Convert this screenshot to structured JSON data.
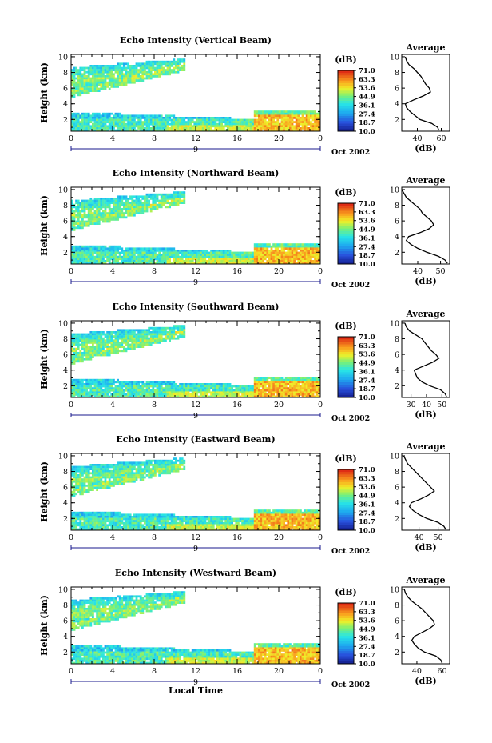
{
  "chart_data": [
    {
      "type": "heatmap",
      "title": "Echo Intensity (Vertical Beam)",
      "ylabel": "Height (km)",
      "xlabel": "",
      "xticks": [
        "0",
        "4",
        "8",
        "12",
        "16",
        "20",
        "0"
      ],
      "yticks": [
        "2",
        "4",
        "6",
        "8",
        "10"
      ],
      "ylim": [
        0.5,
        10.3
      ],
      "day_label": "9",
      "date_label": "Oct 2002",
      "colorbar": {
        "unit": "(dB)",
        "ticks": [
          "71.0",
          "63.3",
          "53.6",
          "44.9",
          "36.1",
          "27.4",
          "18.7",
          "10.0"
        ]
      },
      "profile": {
        "title": "Average",
        "xlabel": "(dB)",
        "xticks": [
          "40",
          "60"
        ],
        "yticks": [
          "2",
          "4",
          "6",
          "8",
          "10"
        ],
        "xlim": [
          27,
          67
        ],
        "points": [
          [
            58,
            0.6
          ],
          [
            57,
            1.0
          ],
          [
            52,
            1.5
          ],
          [
            42,
            2.0
          ],
          [
            38,
            2.5
          ],
          [
            34,
            3.0
          ],
          [
            31,
            3.5
          ],
          [
            30,
            4.0
          ],
          [
            37,
            4.5
          ],
          [
            45,
            5.0
          ],
          [
            51,
            5.5
          ],
          [
            50,
            6.0
          ],
          [
            47,
            6.5
          ],
          [
            45,
            7.0
          ],
          [
            43,
            7.5
          ],
          [
            40,
            8.0
          ],
          [
            37,
            8.5
          ],
          [
            33,
            9.0
          ],
          [
            31,
            9.5
          ],
          [
            30,
            10.0
          ]
        ]
      }
    },
    {
      "type": "heatmap",
      "title": "Echo Intensity (Northward Beam)",
      "ylabel": "Height (km)",
      "xlabel": "",
      "xticks": [
        "0",
        "4",
        "8",
        "12",
        "16",
        "20",
        "0"
      ],
      "yticks": [
        "2",
        "4",
        "6",
        "8",
        "10"
      ],
      "ylim": [
        0.5,
        10.3
      ],
      "day_label": "9",
      "date_label": "Oct 2002",
      "colorbar": {
        "unit": "(dB)",
        "ticks": [
          "71.0",
          "63.3",
          "53.6",
          "44.9",
          "36.1",
          "27.4",
          "18.7",
          "10.0"
        ]
      },
      "profile": {
        "title": "Average",
        "xlabel": "(dB)",
        "xticks": [
          "40",
          "50"
        ],
        "yticks": [
          "2",
          "4",
          "6",
          "8",
          "10"
        ],
        "xlim": [
          33,
          54
        ],
        "points": [
          [
            53,
            0.6
          ],
          [
            52,
            1.0
          ],
          [
            49,
            1.5
          ],
          [
            44,
            2.0
          ],
          [
            40,
            2.5
          ],
          [
            37,
            3.0
          ],
          [
            35,
            3.5
          ],
          [
            36,
            4.0
          ],
          [
            41,
            4.5
          ],
          [
            45,
            5.0
          ],
          [
            47,
            5.5
          ],
          [
            46,
            6.0
          ],
          [
            44,
            6.5
          ],
          [
            42,
            7.0
          ],
          [
            41,
            7.5
          ],
          [
            39,
            8.0
          ],
          [
            37,
            8.5
          ],
          [
            35,
            9.0
          ],
          [
            34,
            9.5
          ],
          [
            33,
            10.0
          ]
        ]
      }
    },
    {
      "type": "heatmap",
      "title": "Echo Intensity (Southward Beam)",
      "ylabel": "Height (km)",
      "xlabel": "",
      "xticks": [
        "0",
        "4",
        "8",
        "12",
        "16",
        "20",
        "0"
      ],
      "yticks": [
        "2",
        "4",
        "6",
        "8",
        "10"
      ],
      "ylim": [
        0.5,
        10.3
      ],
      "day_label": "9",
      "date_label": "Oct 2002",
      "colorbar": {
        "unit": "(dB)",
        "ticks": [
          "71.0",
          "63.3",
          "53.6",
          "44.9",
          "36.1",
          "27.4",
          "18.7",
          "10.0"
        ]
      },
      "profile": {
        "title": "Average",
        "xlabel": "(dB)",
        "xticks": [
          "30",
          "40",
          "50"
        ],
        "yticks": [
          "2",
          "4",
          "6",
          "8",
          "10"
        ],
        "xlim": [
          24,
          55
        ],
        "points": [
          [
            53,
            0.6
          ],
          [
            52,
            1.0
          ],
          [
            49,
            1.5
          ],
          [
            42,
            2.0
          ],
          [
            37,
            2.5
          ],
          [
            34,
            3.0
          ],
          [
            33,
            3.5
          ],
          [
            32,
            4.0
          ],
          [
            38,
            4.5
          ],
          [
            44,
            5.0
          ],
          [
            48,
            5.5
          ],
          [
            46,
            6.0
          ],
          [
            43,
            6.5
          ],
          [
            41,
            7.0
          ],
          [
            39,
            7.5
          ],
          [
            37,
            8.0
          ],
          [
            33,
            8.5
          ],
          [
            29,
            9.0
          ],
          [
            27,
            9.5
          ],
          [
            26,
            10.0
          ]
        ]
      }
    },
    {
      "type": "heatmap",
      "title": "Echo Intensity (Eastward Beam)",
      "ylabel": "Height (km)",
      "xlabel": "",
      "xticks": [
        "0",
        "4",
        "8",
        "12",
        "16",
        "20",
        "0"
      ],
      "yticks": [
        "2",
        "4",
        "6",
        "8",
        "10"
      ],
      "ylim": [
        0.5,
        10.3
      ],
      "day_label": "9",
      "date_label": "Oct 2002",
      "colorbar": {
        "unit": "(dB)",
        "ticks": [
          "71.0",
          "63.3",
          "53.6",
          "44.9",
          "36.1",
          "27.4",
          "18.7",
          "10.0"
        ]
      },
      "profile": {
        "title": "Average",
        "xlabel": "(dB)",
        "xticks": [
          "40",
          "50"
        ],
        "yticks": [
          "2",
          "4",
          "6",
          "8",
          "10"
        ],
        "xlim": [
          31,
          56
        ],
        "points": [
          [
            54,
            0.6
          ],
          [
            53,
            1.0
          ],
          [
            50,
            1.5
          ],
          [
            44,
            2.0
          ],
          [
            40,
            2.5
          ],
          [
            37,
            3.0
          ],
          [
            35,
            3.5
          ],
          [
            36,
            4.0
          ],
          [
            41,
            4.5
          ],
          [
            45,
            5.0
          ],
          [
            48,
            5.5
          ],
          [
            46,
            6.0
          ],
          [
            44,
            6.5
          ],
          [
            42,
            7.0
          ],
          [
            40,
            7.5
          ],
          [
            38,
            8.0
          ],
          [
            36,
            8.5
          ],
          [
            34,
            9.0
          ],
          [
            33,
            9.5
          ],
          [
            32,
            10.0
          ]
        ]
      }
    },
    {
      "type": "heatmap",
      "title": "Echo Intensity (Westward Beam)",
      "ylabel": "Height (km)",
      "xlabel": "Local Time",
      "xticks": [
        "0",
        "4",
        "8",
        "12",
        "16",
        "20",
        "0"
      ],
      "yticks": [
        "2",
        "4",
        "6",
        "8",
        "10"
      ],
      "ylim": [
        0.5,
        10.3
      ],
      "day_label": "9",
      "date_label": "Oct 2002",
      "colorbar": {
        "unit": "(dB)",
        "ticks": [
          "71.0",
          "63.3",
          "53.6",
          "44.9",
          "36.1",
          "27.4",
          "18.7",
          "10.0"
        ]
      },
      "profile": {
        "title": "Average",
        "xlabel": "(dB)",
        "xticks": [
          "40",
          "60"
        ],
        "yticks": [
          "2",
          "4",
          "6",
          "8",
          "10"
        ],
        "xlim": [
          28,
          66
        ],
        "points": [
          [
            60,
            0.6
          ],
          [
            59,
            1.0
          ],
          [
            55,
            1.5
          ],
          [
            46,
            2.0
          ],
          [
            41,
            2.5
          ],
          [
            38,
            3.0
          ],
          [
            36,
            3.5
          ],
          [
            38,
            4.0
          ],
          [
            44,
            4.5
          ],
          [
            50,
            5.0
          ],
          [
            54,
            5.5
          ],
          [
            53,
            6.0
          ],
          [
            50,
            6.5
          ],
          [
            47,
            7.0
          ],
          [
            44,
            7.5
          ],
          [
            40,
            8.0
          ],
          [
            36,
            8.5
          ],
          [
            33,
            9.0
          ],
          [
            31,
            9.5
          ],
          [
            30,
            10.0
          ]
        ]
      }
    }
  ]
}
